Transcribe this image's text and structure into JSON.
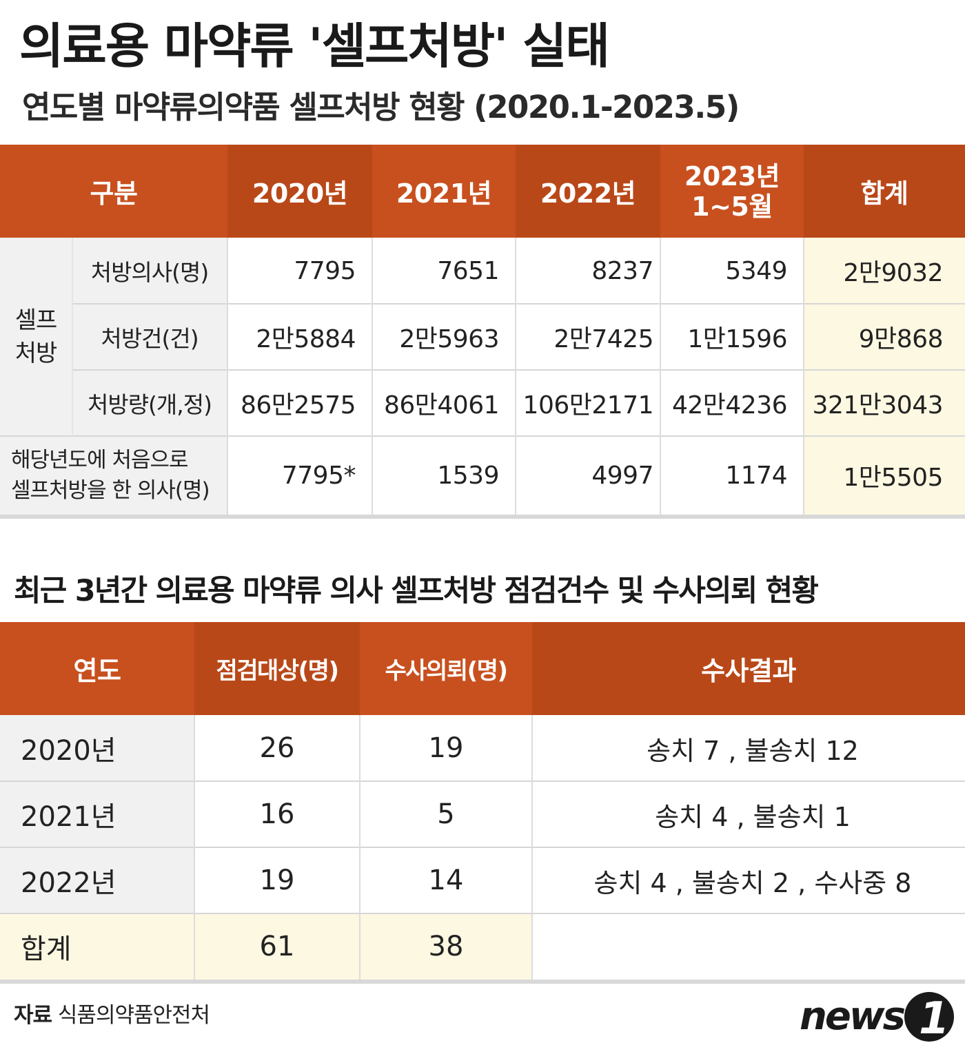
{
  "title": "의료용 마약류 '셀프처방' 실태",
  "subtitle": "연도별 마약류의약품 셀프처방 현황 (2020.1-2023.5)",
  "table1": {
    "headers": {
      "category": "구분",
      "y2020": "2020년",
      "y2021": "2021년",
      "y2022": "2022년",
      "y2023_line1": "2023년",
      "y2023_line2": "1~5월",
      "total": "합계"
    },
    "group_label_line1": "셀프",
    "group_label_line2": "처방",
    "rows": [
      {
        "label": "처방의사(명)",
        "values": [
          "7795",
          "7651",
          "8237",
          "5349"
        ],
        "total": "2만9032"
      },
      {
        "label": "처방건(건)",
        "values": [
          "2만5884",
          "2만5963",
          "2만7425",
          "1만1596"
        ],
        "total": "9만868"
      },
      {
        "label": "처방량(개,정)",
        "values": [
          "86만2575",
          "86만4061",
          "106만2171",
          "42만4236"
        ],
        "total": "321만3043"
      }
    ],
    "first_time": {
      "label_line1": "해당년도에 처음으로",
      "label_line2": "셀프처방을 한 의사(명)",
      "values": [
        "7795*",
        "1539",
        "4997",
        "1174"
      ],
      "total": "1만5505"
    }
  },
  "section2_title": "최근 3년간 의료용 마약류 의사 셀프처방 점검건수 및 수사의뢰 현황",
  "table2": {
    "headers": {
      "year": "연도",
      "inspected": "점검대상(명)",
      "referred": "수사의뢰(명)",
      "result": "수사결과"
    },
    "rows": [
      {
        "year": "2020년",
        "inspected": "26",
        "referred": "19",
        "result": "송치 7 , 불송치 12"
      },
      {
        "year": "2021년",
        "inspected": "16",
        "referred": "5",
        "result": "송치 4 , 불송치 1"
      },
      {
        "year": "2022년",
        "inspected": "19",
        "referred": "14",
        "result": "송치 4 , 불송치 2 , 수사중 8"
      }
    ],
    "total": {
      "year": "합계",
      "inspected": "61",
      "referred": "38",
      "result": ""
    }
  },
  "source": {
    "label": "자료",
    "text": "식품의약품안전처"
  },
  "logo": {
    "text": "news",
    "mark": "1"
  },
  "colors": {
    "header": "#c8501e",
    "total_bg": "#fdf8e2",
    "label_bg": "#f1f1f1"
  }
}
